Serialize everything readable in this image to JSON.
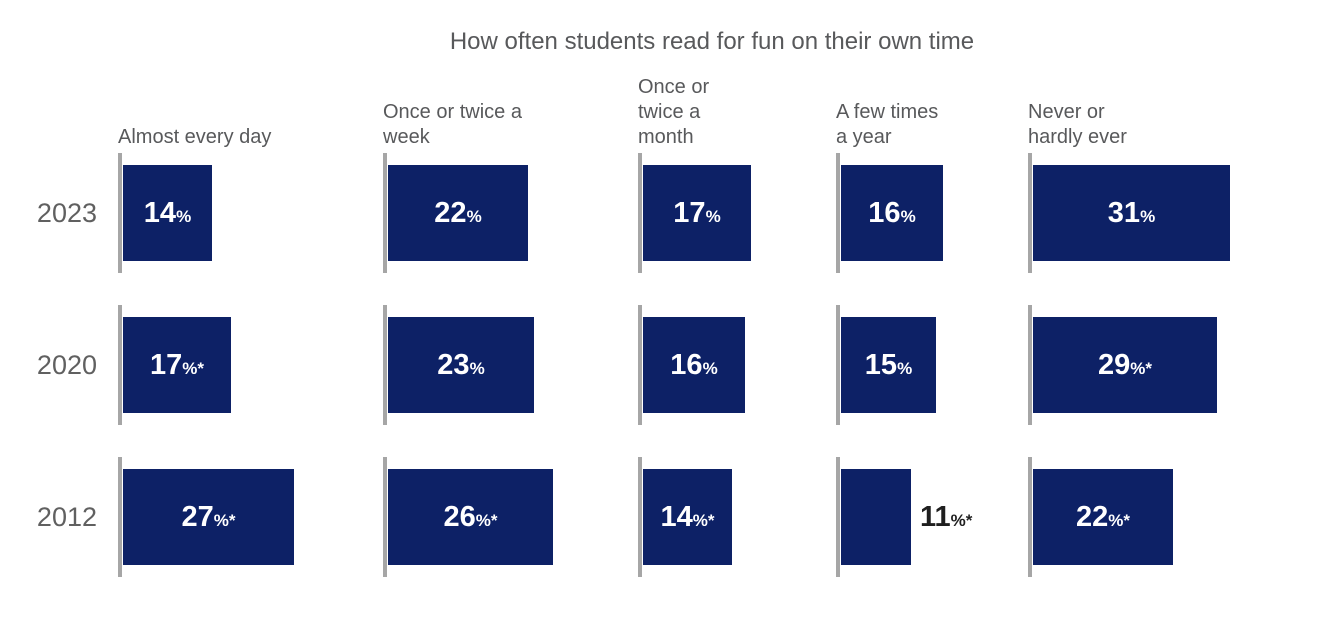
{
  "chart_data": {
    "type": "bar",
    "orientation": "horizontal",
    "title": "How often students read for fun on their own time",
    "value_unit": "%",
    "categories": [
      "Almost every day",
      "Once or twice a week",
      "Once or twice a month",
      "A few times a year",
      "Never or hardly ever"
    ],
    "category_header_lines": [
      [
        "Almost every day"
      ],
      [
        "Once or twice a",
        "week"
      ],
      [
        "Once or",
        "twice a",
        "month"
      ],
      [
        "A few times",
        "a year"
      ],
      [
        "Never or",
        "hardly ever"
      ]
    ],
    "row_labels": [
      "2023",
      "2020",
      "2012"
    ],
    "series": [
      {
        "name": "2023",
        "values": [
          14,
          22,
          17,
          16,
          31
        ],
        "label_suffixes": [
          "%",
          "%",
          "%",
          "%",
          "%"
        ]
      },
      {
        "name": "2020",
        "values": [
          17,
          23,
          16,
          15,
          29
        ],
        "label_suffixes": [
          "%*",
          "%",
          "%",
          "%",
          "%*"
        ]
      },
      {
        "name": "2012",
        "values": [
          27,
          26,
          14,
          11,
          22
        ],
        "label_suffixes": [
          "%*",
          "%*",
          "%*",
          "%*",
          "%*"
        ]
      }
    ],
    "outside_labels": [
      {
        "series": "2012",
        "category": "A few times a year"
      }
    ],
    "layout_hints": {
      "legend": "none",
      "gridlines": false,
      "value_axis_hidden": true,
      "baseline_ticks_visible": true,
      "value_labels": "inside bars in white, except outside-dark where flagged"
    }
  },
  "colors": {
    "bar": "#0d2166",
    "bar_label": "#ffffff",
    "outside_label": "#1f1f1f",
    "axis_tick": "#a6a6a6",
    "heading_text": "#58595b",
    "year_text": "#606060",
    "background": "#ffffff"
  }
}
